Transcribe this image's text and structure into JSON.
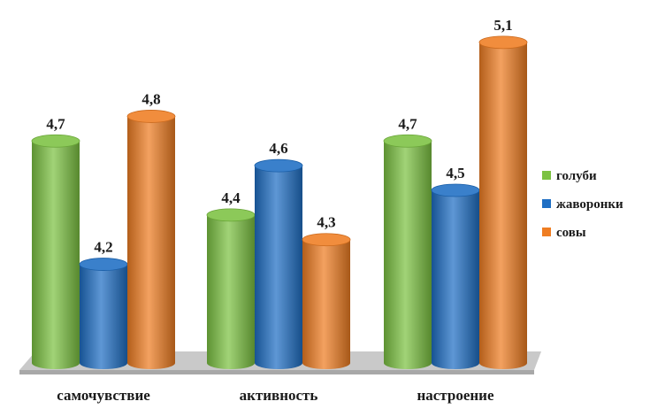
{
  "chart_data": {
    "type": "bar",
    "style": "3d-cylinder",
    "categories": [
      "самочувствие",
      "активность",
      "настроение"
    ],
    "series": [
      {
        "name": "голуби",
        "values": [
          4.7,
          4.4,
          4.7
        ],
        "value_labels": [
          "4,7",
          "4,4",
          "4,7"
        ],
        "color": "#7cc242"
      },
      {
        "name": "жаворонки",
        "values": [
          4.2,
          4.6,
          4.5
        ],
        "value_labels": [
          "4,2",
          "4,6",
          "4,5"
        ],
        "color": "#1f6fc4"
      },
      {
        "name": "совы",
        "values": [
          4.8,
          4.3,
          5.1
        ],
        "value_labels": [
          "4,8",
          "4,3",
          "5,1"
        ],
        "color": "#ef7d22"
      }
    ],
    "title": "",
    "xlabel": "",
    "ylabel": "",
    "ylim": [
      3.8,
      5.2
    ],
    "legend": "right",
    "grid": false
  }
}
